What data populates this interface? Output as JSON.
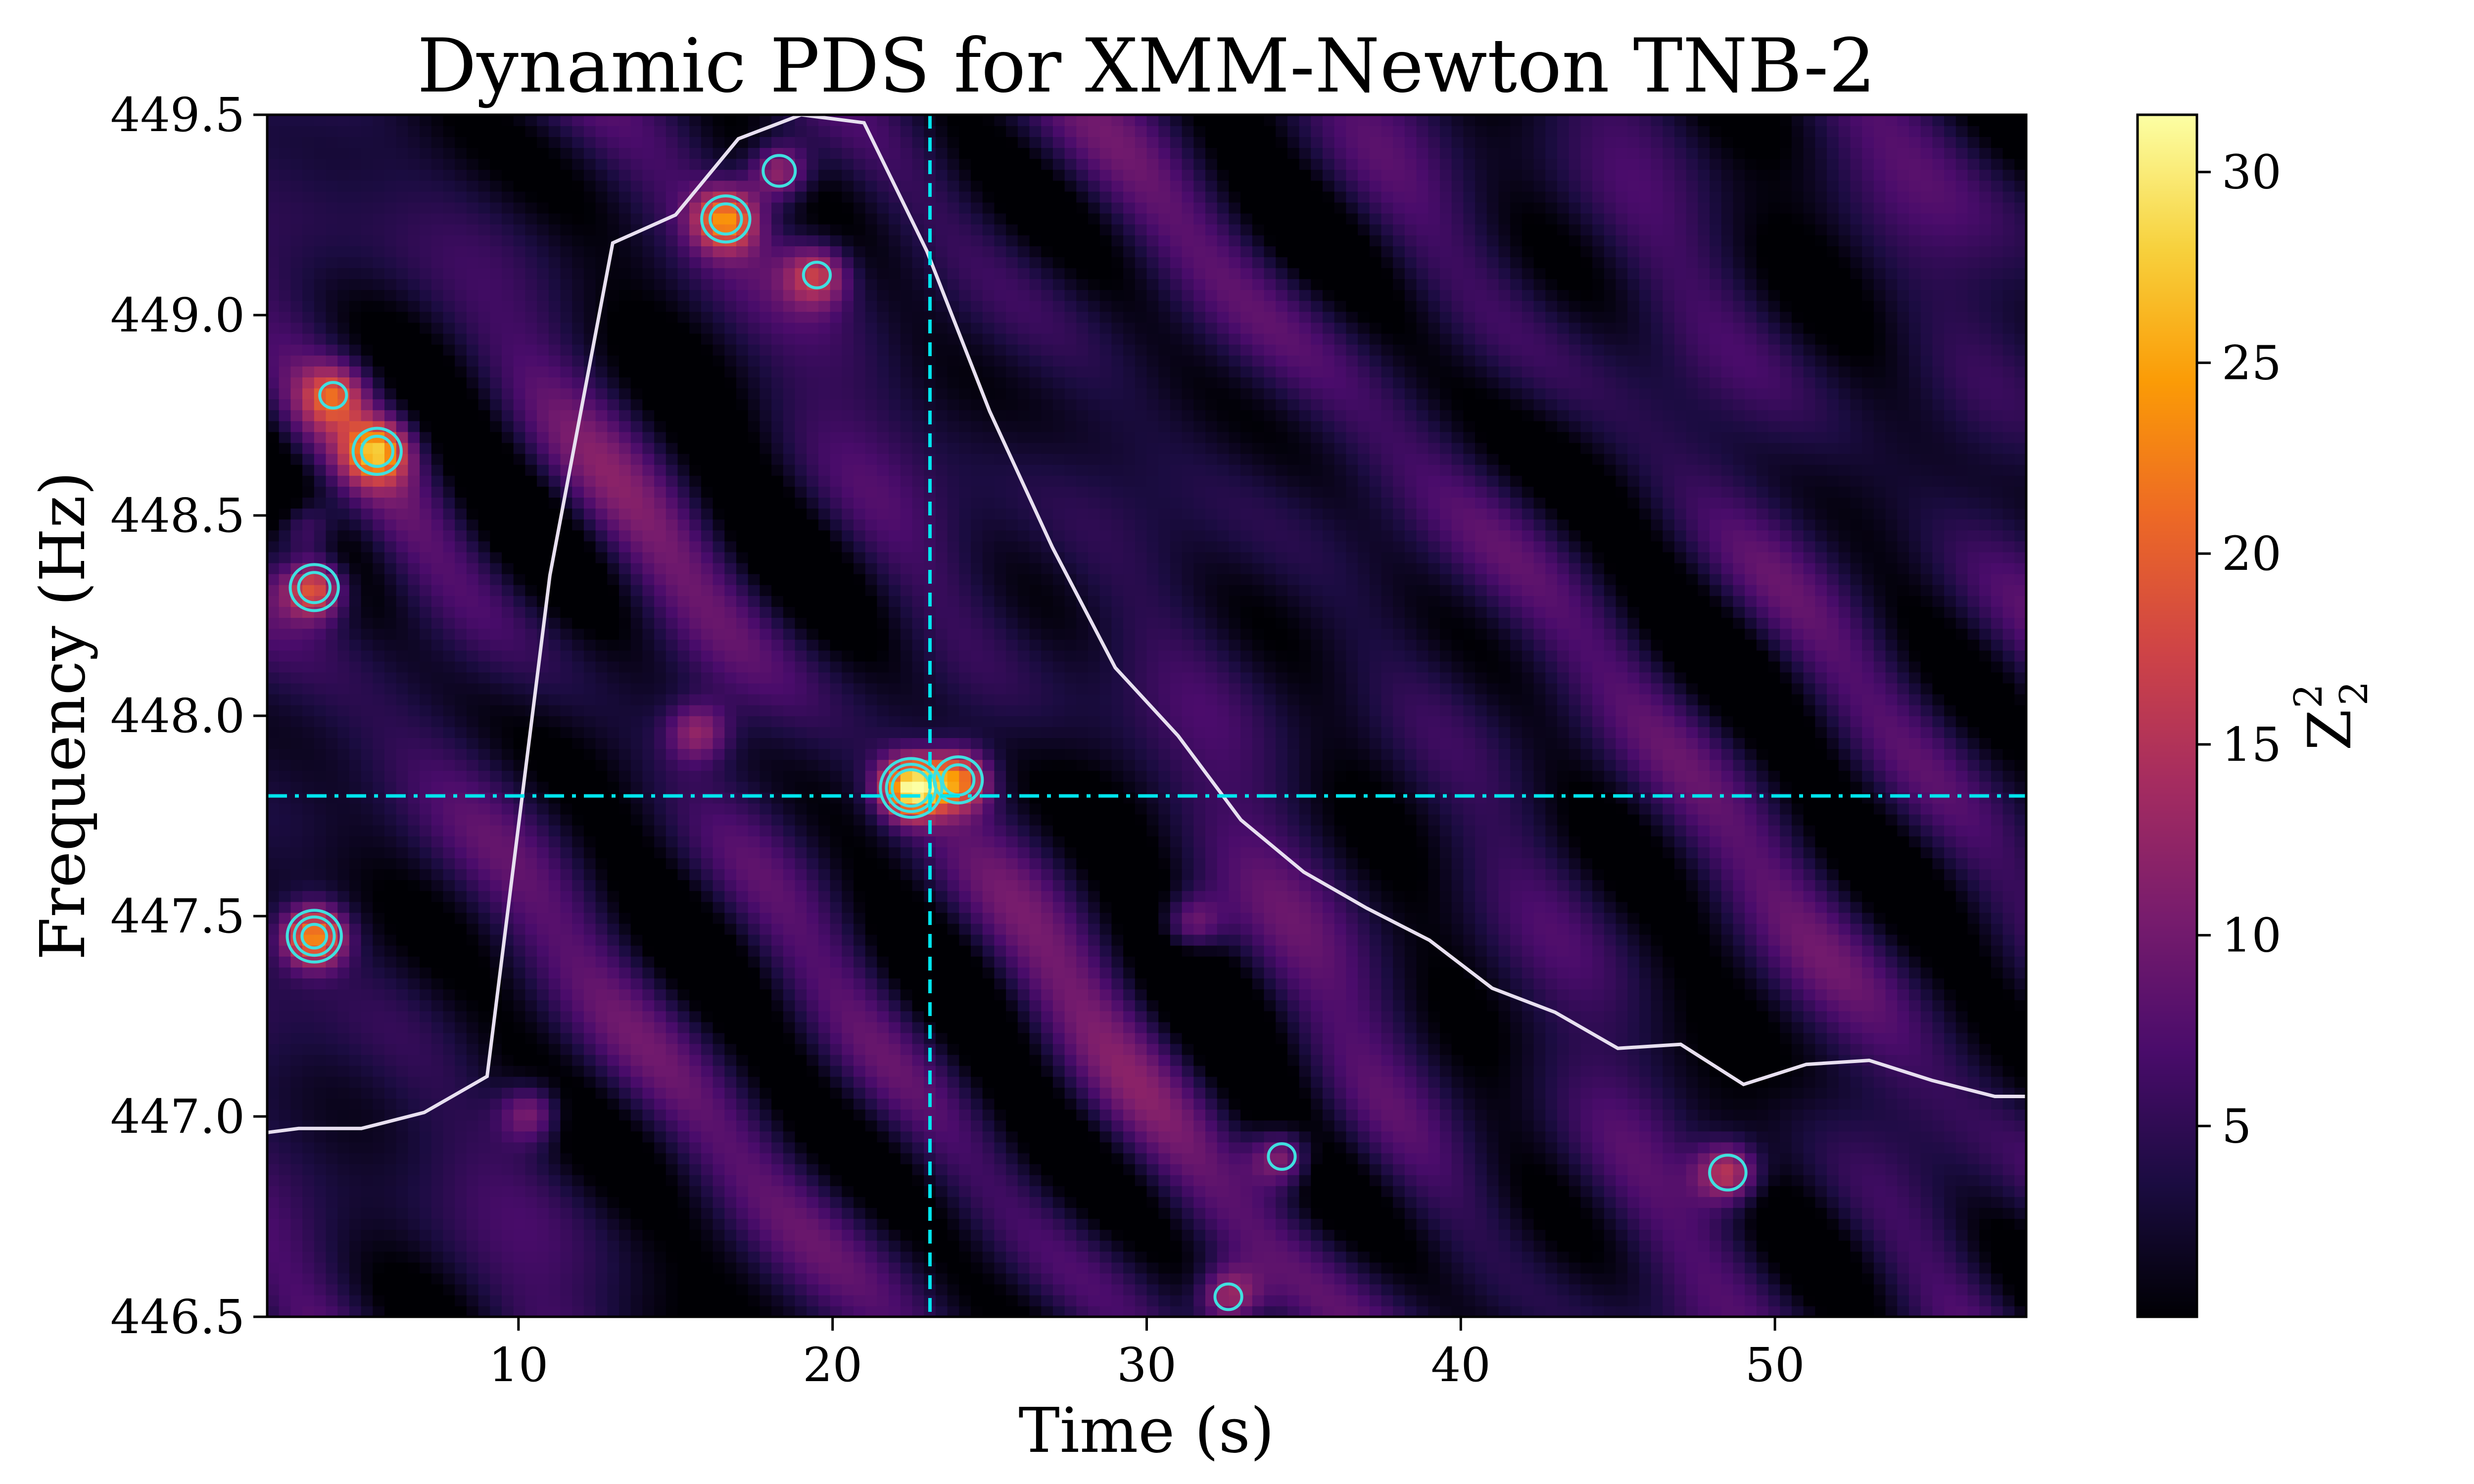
{
  "chart_data": {
    "type": "heatmap",
    "title": "Dynamic PDS for XMM-Newton TNB-2",
    "xlabel": "Time (s)",
    "ylabel": "Frequency (Hz)",
    "xlim": [
      2,
      58
    ],
    "ylim": [
      446.5,
      449.5
    ],
    "xticks": [
      10,
      20,
      30,
      40,
      50
    ],
    "yticks": [
      446.5,
      447.0,
      447.5,
      448.0,
      448.5,
      449.0,
      449.5
    ],
    "x_tick_labels": [
      "10",
      "20",
      "30",
      "40",
      "50"
    ],
    "y_tick_labels": [
      "446.5",
      "447.0",
      "447.5",
      "448.0",
      "448.5",
      "449.0",
      "449.5"
    ],
    "colorbar": {
      "label_main": "Z",
      "label_sub": "2",
      "label_sup": "2",
      "range": [
        0,
        31.5
      ],
      "ticks": [
        5,
        10,
        15,
        20,
        25,
        30
      ],
      "tick_labels": [
        "5",
        "10",
        "15",
        "20",
        "25",
        "30"
      ],
      "colormap": "inferno",
      "stops": [
        "#000004",
        "#1b0c41",
        "#4a0c6b",
        "#781c6d",
        "#a52c60",
        "#cf4446",
        "#ed6925",
        "#fb9b06",
        "#f7d13d",
        "#fcffa4"
      ]
    },
    "peaks": [
      {
        "x": 22.5,
        "y": 447.82,
        "amp": 26
      },
      {
        "x": 24.0,
        "y": 447.84,
        "amp": 18
      },
      {
        "x": 16.6,
        "y": 449.24,
        "amp": 18
      },
      {
        "x": 18.3,
        "y": 449.36,
        "amp": 13
      },
      {
        "x": 19.5,
        "y": 449.1,
        "amp": 12
      },
      {
        "x": 5.5,
        "y": 448.66,
        "amp": 18
      },
      {
        "x": 3.5,
        "y": 448.32,
        "amp": 18
      },
      {
        "x": 3.5,
        "y": 447.45,
        "amp": 21
      },
      {
        "x": 4.1,
        "y": 448.8,
        "amp": 12
      },
      {
        "x": 3.2,
        "y": 448.47,
        "amp": 10
      },
      {
        "x": 48.5,
        "y": 446.86,
        "amp": 14
      },
      {
        "x": 34.3,
        "y": 446.9,
        "amp": 12
      },
      {
        "x": 32.6,
        "y": 446.55,
        "amp": 12
      },
      {
        "x": 15.7,
        "y": 447.96,
        "amp": 10
      },
      {
        "x": 10.4,
        "y": 447.01,
        "amp": 10
      },
      {
        "x": 31.4,
        "y": 447.48,
        "amp": 10
      }
    ],
    "contour_levels": [
      13,
      17,
      21
    ],
    "contour_color": "#40e0e0",
    "light_curve": {
      "name": "",
      "color": "#e8e0f0",
      "x": [
        2,
        3,
        5,
        7,
        9,
        11,
        13,
        15,
        17,
        19,
        21,
        23,
        25,
        27,
        29,
        31,
        33,
        35,
        37,
        39,
        41,
        43,
        45,
        47,
        49,
        51,
        53,
        55,
        57,
        58
      ],
      "y": [
        446.96,
        446.97,
        446.97,
        447.01,
        447.1,
        448.35,
        449.18,
        449.25,
        449.44,
        449.5,
        449.48,
        449.16,
        448.76,
        448.42,
        448.12,
        447.95,
        447.74,
        447.61,
        447.52,
        447.44,
        447.32,
        447.26,
        447.17,
        447.18,
        447.08,
        447.13,
        447.14,
        447.09,
        447.05,
        447.05
      ]
    },
    "vline": {
      "x": 23.1,
      "style": "dashed",
      "color": "#00e5ee"
    },
    "hline": {
      "y": 447.8,
      "style": "dashdot",
      "color": "#00e5ee"
    }
  }
}
